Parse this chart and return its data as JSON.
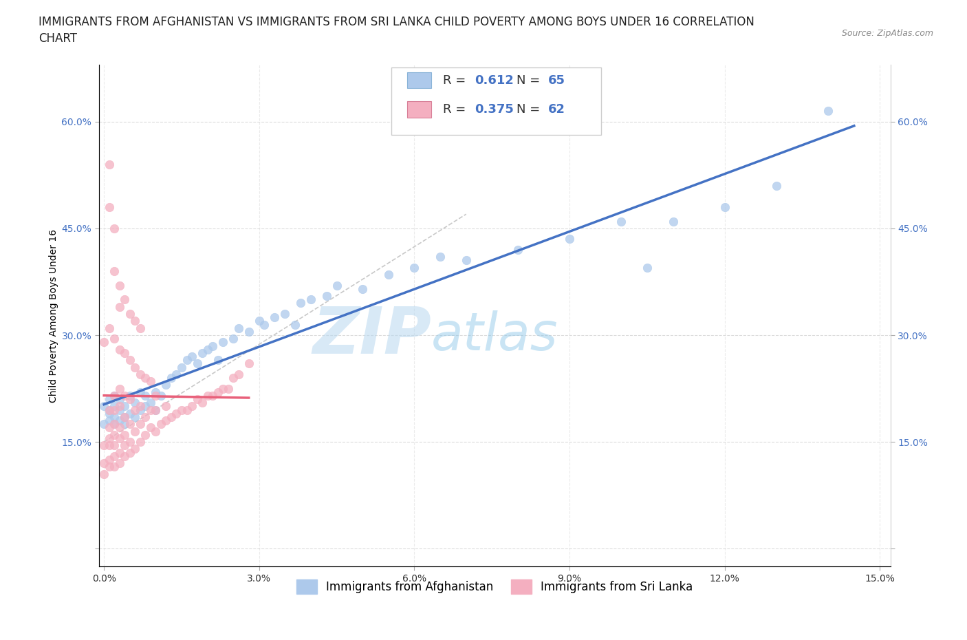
{
  "title": "IMMIGRANTS FROM AFGHANISTAN VS IMMIGRANTS FROM SRI LANKA CHILD POVERTY AMONG BOYS UNDER 16 CORRELATION\nCHART",
  "source_text": "Source: ZipAtlas.com",
  "xlabel": "",
  "ylabel": "Child Poverty Among Boys Under 16",
  "xlim": [
    -0.001,
    0.152
  ],
  "ylim": [
    -0.025,
    0.68
  ],
  "xticks": [
    0.0,
    0.03,
    0.06,
    0.09,
    0.12,
    0.15
  ],
  "yticks": [
    0.0,
    0.15,
    0.3,
    0.45,
    0.6
  ],
  "xtick_labels": [
    "0.0%",
    "3.0%",
    "6.0%",
    "9.0%",
    "12.0%",
    "15.0%"
  ],
  "ytick_labels": [
    "",
    "15.0%",
    "30.0%",
    "45.0%",
    "60.0%"
  ],
  "afghanistan_color": "#adc9eb",
  "sri_lanka_color": "#f4afc0",
  "afghanistan_R": 0.612,
  "afghanistan_N": 65,
  "sri_lanka_R": 0.375,
  "sri_lanka_N": 62,
  "regression_line_afghanistan_color": "#4472c4",
  "regression_line_sri_lanka_color": "#e8607a",
  "watermark_color": "#cce4f5",
  "background_color": "#ffffff",
  "grid_color": "#d8d8d8",
  "title_fontsize": 12,
  "axis_label_fontsize": 10,
  "tick_fontsize": 10,
  "tick_color": "#4472c4",
  "legend_R_N_color": "#4472c4"
}
